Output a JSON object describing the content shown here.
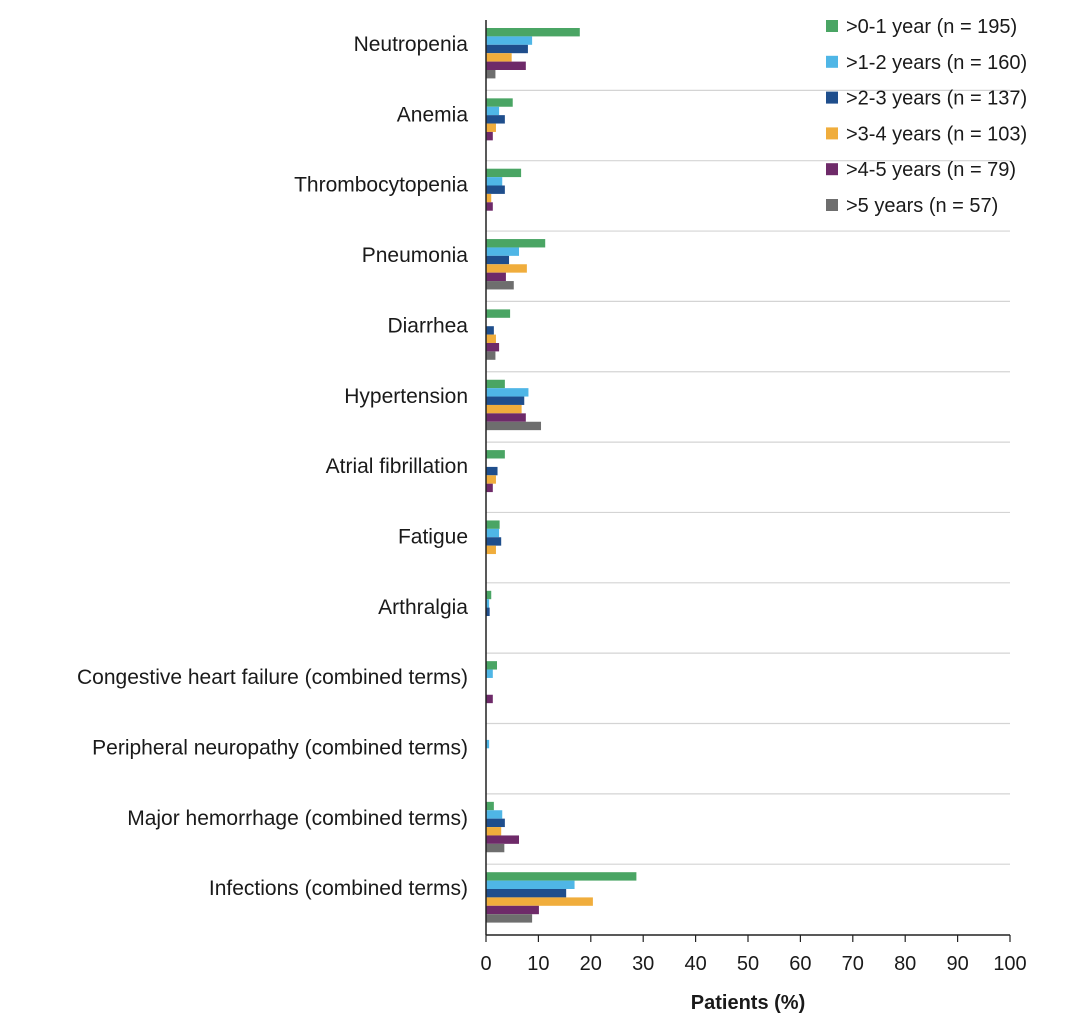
{
  "chart_data": {
    "type": "bar",
    "orientation": "horizontal",
    "title": "",
    "xlabel": "Patients (%)",
    "ylabel": "",
    "xlim": [
      0,
      100
    ],
    "xticks": [
      0,
      10,
      20,
      30,
      40,
      50,
      60,
      70,
      80,
      90,
      100
    ],
    "grid": true,
    "legend_position": "top-right",
    "categories": [
      "Neutropenia",
      "Anemia",
      "Thrombocytopenia",
      "Pneumonia",
      "Diarrhea",
      "Hypertension",
      "Atrial fibrillation",
      "Fatigue",
      "Arthralgia",
      "Congestive heart failure (combined terms)",
      "Peripheral neuropathy (combined terms)",
      "Major hemorrhage (combined terms)",
      "Infections (combined terms)"
    ],
    "series": [
      {
        "name": ">0-1 year (n = 195)",
        "color": "#4aa564",
        "values": [
          17.9,
          5.1,
          6.7,
          11.3,
          4.6,
          3.6,
          3.6,
          2.6,
          1.0,
          2.1,
          0,
          1.5,
          28.7
        ]
      },
      {
        "name": ">1-2 years (n = 160)",
        "color": "#4fb6e6",
        "values": [
          8.8,
          2.5,
          3.1,
          6.3,
          0,
          8.1,
          0,
          2.5,
          0.6,
          1.3,
          0.6,
          3.1,
          16.9
        ]
      },
      {
        "name": ">2-3 years (n = 137)",
        "color": "#1f4e8c",
        "values": [
          8.0,
          3.6,
          3.6,
          4.4,
          1.5,
          7.3,
          2.2,
          2.9,
          0.7,
          0,
          0,
          3.6,
          15.3
        ]
      },
      {
        "name": ">3-4 years (n = 103)",
        "color": "#f0ad3c",
        "values": [
          4.9,
          1.9,
          1.0,
          7.8,
          1.9,
          6.8,
          1.9,
          1.9,
          0,
          0,
          0,
          2.9,
          20.4
        ]
      },
      {
        "name": ">4-5 years (n = 79)",
        "color": "#6e2a69",
        "values": [
          7.6,
          1.3,
          1.3,
          3.8,
          2.5,
          7.6,
          1.3,
          0,
          0,
          1.3,
          0,
          6.3,
          10.1
        ]
      },
      {
        "name": ">5 years (n = 57)",
        "color": "#6e6e6e",
        "values": [
          1.8,
          0,
          0,
          5.3,
          1.8,
          10.5,
          0,
          0,
          0,
          0,
          0,
          3.5,
          8.8
        ]
      }
    ]
  }
}
